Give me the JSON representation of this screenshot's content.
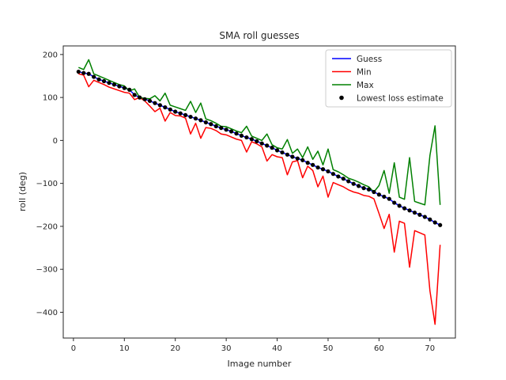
{
  "chart_data": {
    "type": "line",
    "title": "SMA roll guesses",
    "xlabel": "Image number",
    "ylabel": "roll (deg)",
    "xlim": [
      -2,
      75
    ],
    "ylim": [
      -460,
      220
    ],
    "xticks": [
      0,
      10,
      20,
      30,
      40,
      50,
      60,
      70
    ],
    "yticks": [
      200,
      100,
      0,
      -100,
      -200,
      -300,
      -400
    ],
    "xtick_labels": [
      "0",
      "10",
      "20",
      "30",
      "40",
      "50",
      "60",
      "70"
    ],
    "ytick_labels": [
      "200",
      "100",
      "0",
      "−100",
      "−200",
      "−300",
      "−400"
    ],
    "grid": false,
    "legend_position": "top-right",
    "x": [
      1,
      2,
      3,
      4,
      5,
      6,
      7,
      8,
      9,
      10,
      11,
      12,
      13,
      14,
      15,
      16,
      17,
      18,
      19,
      20,
      21,
      22,
      23,
      24,
      25,
      26,
      27,
      28,
      29,
      30,
      31,
      32,
      33,
      34,
      35,
      36,
      37,
      38,
      39,
      40,
      41,
      42,
      43,
      44,
      45,
      46,
      47,
      48,
      49,
      50,
      51,
      52,
      53,
      54,
      55,
      56,
      57,
      58,
      59,
      60,
      61,
      62,
      63,
      64,
      65,
      66,
      67,
      68,
      69,
      70,
      71,
      72
    ],
    "series": [
      {
        "name": "Guess",
        "kind": "line",
        "color": "#0000ff",
        "values": [
          160,
          157,
          155,
          148,
          142,
          138,
          134,
          130,
          126,
          122,
          118,
          106,
          100,
          96,
          92,
          87,
          82,
          77,
          72,
          67,
          63,
          59,
          55,
          51,
          47,
          42,
          38,
          33,
          29,
          25,
          21,
          16,
          11,
          7,
          3,
          -2,
          -7,
          -12,
          -17,
          -23,
          -28,
          -33,
          -38,
          -42,
          -46,
          -52,
          -57,
          -63,
          -67,
          -72,
          -78,
          -84,
          -89,
          -95,
          -101,
          -106,
          -111,
          -114,
          -120,
          -126,
          -131,
          -136,
          -145,
          -152,
          -158,
          -163,
          -168,
          -173,
          -178,
          -184,
          -191,
          -197
        ]
      },
      {
        "name": "Min",
        "kind": "line",
        "color": "#ff0000",
        "values": [
          155,
          152,
          125,
          140,
          135,
          130,
          124,
          120,
          116,
          112,
          110,
          95,
          100,
          92,
          80,
          67,
          75,
          45,
          65,
          58,
          57,
          52,
          15,
          40,
          5,
          30,
          28,
          23,
          15,
          13,
          8,
          3,
          0,
          -27,
          -3,
          -8,
          -15,
          -48,
          -33,
          -38,
          -40,
          -80,
          -50,
          -47,
          -87,
          -60,
          -70,
          -108,
          -83,
          -132,
          -98,
          -103,
          -108,
          -115,
          -120,
          -123,
          -128,
          -130,
          -136,
          -170,
          -205,
          -172,
          -260,
          -188,
          -193,
          -295,
          -210,
          -215,
          -220,
          -350,
          -428,
          -243
        ]
      },
      {
        "name": "Max",
        "kind": "line",
        "color": "#008000",
        "values": [
          170,
          165,
          188,
          155,
          150,
          145,
          140,
          135,
          130,
          127,
          115,
          120,
          100,
          98,
          97,
          104,
          92,
          110,
          82,
          78,
          74,
          70,
          91,
          65,
          87,
          50,
          46,
          40,
          33,
          32,
          27,
          22,
          18,
          33,
          10,
          5,
          0,
          15,
          -10,
          -17,
          -20,
          2,
          -30,
          -20,
          -40,
          -15,
          -44,
          -25,
          -57,
          -20,
          -68,
          -73,
          -80,
          -88,
          -92,
          -97,
          -103,
          -108,
          -120,
          -105,
          -70,
          -123,
          -52,
          -132,
          -137,
          -40,
          -142,
          -146,
          -150,
          -35,
          34,
          -150
        ]
      },
      {
        "name": "Lowest loss estimate",
        "kind": "scatter",
        "color": "#000000",
        "values": [
          160,
          157,
          155,
          148,
          142,
          138,
          134,
          130,
          126,
          122,
          118,
          106,
          100,
          96,
          92,
          87,
          82,
          77,
          72,
          67,
          63,
          59,
          55,
          51,
          47,
          42,
          38,
          33,
          29,
          25,
          21,
          16,
          11,
          7,
          3,
          -2,
          -7,
          -12,
          -17,
          -23,
          -28,
          -33,
          -38,
          -42,
          -46,
          -52,
          -57,
          -63,
          -67,
          -72,
          -78,
          -84,
          -89,
          -95,
          -101,
          -106,
          -111,
          -114,
          -120,
          -126,
          -131,
          -136,
          -145,
          -152,
          -158,
          -163,
          -168,
          -173,
          -178,
          -184,
          -191,
          -197
        ]
      }
    ]
  }
}
